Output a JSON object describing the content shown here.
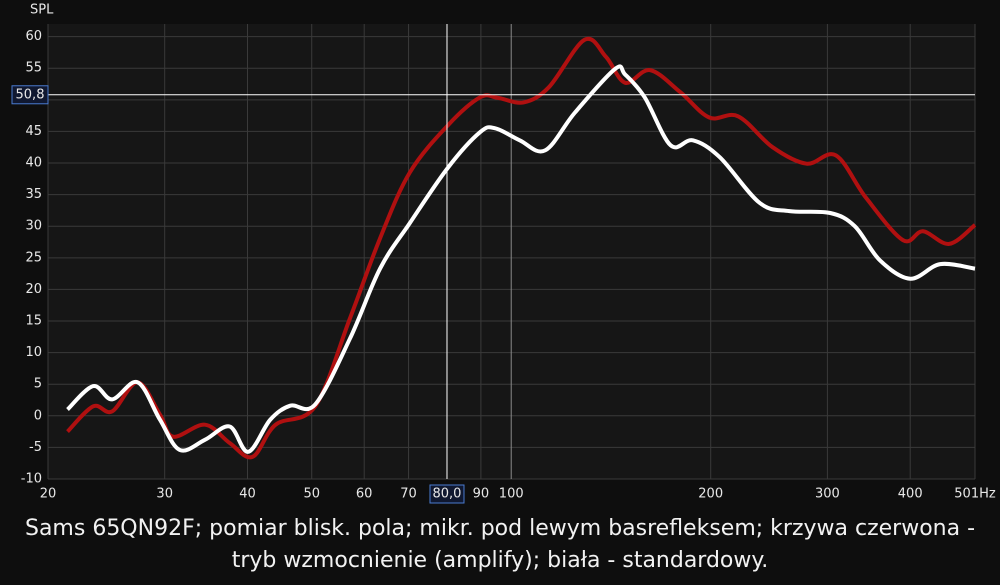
{
  "chart_data": {
    "type": "line",
    "y_label": "SPL",
    "xscale": "log",
    "xlim": [
      20,
      501
    ],
    "ylim": [
      -10,
      62
    ],
    "xticks": [
      20,
      30,
      40,
      50,
      60,
      70,
      90,
      100,
      200,
      300,
      400,
      {
        "value": 501,
        "label": "501Hz"
      }
    ],
    "yticks": [
      -10,
      -5,
      0,
      5,
      10,
      15,
      20,
      25,
      30,
      35,
      40,
      45,
      50,
      55,
      60
    ],
    "grid": true,
    "cursor": {
      "x": {
        "value": 80,
        "label": "80,0"
      },
      "y": {
        "value": 50.8,
        "label": "50,8"
      }
    },
    "series": [
      {
        "color": "#b01010",
        "x": [
          21.4,
          23.4,
          25.0,
          27.3,
          29.5,
          30.9,
          34.5,
          37.6,
          40.7,
          44.1,
          50.6,
          57.1,
          63.4,
          70.3,
          80.3,
          89.8,
          95.5,
          104.4,
          114,
          129,
          139,
          148.6,
          162,
          180,
          199,
          220,
          248,
          279,
          309,
          343,
          390,
          418,
          458,
          501
        ],
        "values": [
          -2.5,
          1.5,
          0.7,
          5.3,
          0.2,
          -3.3,
          -1.4,
          -4.3,
          -6.5,
          -1.4,
          1.5,
          15.4,
          28.1,
          38.5,
          46.0,
          50.4,
          50.3,
          49.6,
          52.0,
          59.5,
          56.8,
          52.7,
          54.7,
          51.2,
          47.2,
          47.4,
          42.5,
          39.9,
          41.2,
          34.5,
          27.8,
          29.2,
          27.2,
          30.2
        ]
      },
      {
        "color": "#ffffff",
        "x": [
          21.4,
          23.4,
          25.0,
          27.3,
          29.5,
          31.6,
          34.5,
          37.6,
          40.1,
          43.3,
          46.4,
          50.6,
          57.1,
          63.4,
          70.3,
          80.3,
          89.8,
          94.6,
          103,
          112.5,
          124.8,
          143.5,
          148.6,
          159,
          174,
          188,
          206.5,
          237,
          263,
          303,
          330,
          360,
          400,
          444,
          501
        ],
        "values": [
          1.0,
          4.7,
          2.6,
          5.3,
          -0.6,
          -5.4,
          -3.8,
          -1.7,
          -5.7,
          -0.6,
          1.6,
          1.8,
          12.2,
          23.3,
          30.5,
          39.3,
          44.9,
          45.5,
          43.6,
          42.0,
          48.0,
          54.9,
          54.0,
          50.4,
          42.8,
          43.6,
          40.9,
          33.7,
          32.4,
          32.1,
          30.0,
          24.6,
          21.7,
          24.0,
          23.3
        ]
      }
    ],
    "caption": "Sams 65QN92F; pomiar blisk. pola; mikr. pod lewym basrefleksem; krzywa czerwona - tryb wzmocnienie (amplify); biała - standardowy."
  }
}
